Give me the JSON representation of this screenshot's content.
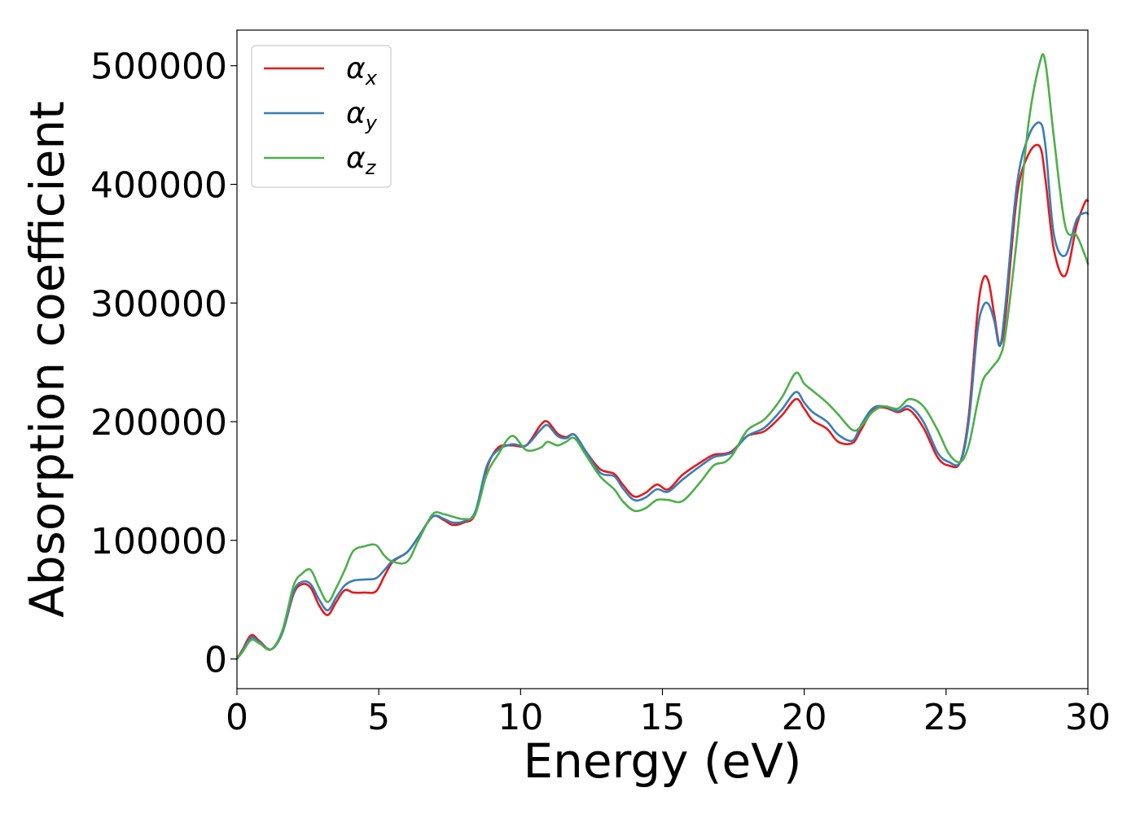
{
  "chart_data": {
    "type": "line",
    "xlabel": "Energy (eV)",
    "ylabel": "Absorption coefficient",
    "xlim": [
      0,
      30
    ],
    "ylim": [
      -25000,
      530000
    ],
    "xticks": [
      0,
      5,
      10,
      15,
      20,
      25,
      30
    ],
    "yticks": [
      0,
      100000,
      200000,
      300000,
      400000,
      500000
    ],
    "xtick_labels": [
      "0",
      "5",
      "10",
      "15",
      "20",
      "25",
      "30"
    ],
    "ytick_labels": [
      "0",
      "100000",
      "200000",
      "300000",
      "400000",
      "500000"
    ],
    "grid": false,
    "legend_position": "upper-left",
    "series": [
      {
        "name": "α",
        "subscript": "x",
        "color": "#e41a1c",
        "x": [
          0,
          0.2,
          0.5,
          0.8,
          1.2,
          1.6,
          2.0,
          2.3,
          2.6,
          2.9,
          3.2,
          3.5,
          3.8,
          4.1,
          4.5,
          4.9,
          5.2,
          5.5,
          6.0,
          6.4,
          6.9,
          7.3,
          7.6,
          8.0,
          8.4,
          8.8,
          9.2,
          9.7,
          10.2,
          10.7,
          10.95,
          11.3,
          11.6,
          11.9,
          12.3,
          12.8,
          13.3,
          13.6,
          14.0,
          14.4,
          14.8,
          15.2,
          15.7,
          16.3,
          16.8,
          17.2,
          17.5,
          18.0,
          18.6,
          19.2,
          19.7,
          20.0,
          20.3,
          20.8,
          21.2,
          21.7,
          22.0,
          22.4,
          22.8,
          23.3,
          23.7,
          24.2,
          24.7,
          25.1,
          25.5,
          25.8,
          26.1,
          26.3,
          26.5,
          26.7,
          26.9,
          27.1,
          27.5,
          27.9,
          28.3,
          28.5,
          28.8,
          29.2,
          29.6,
          29.9,
          30.0
        ],
        "values": [
          0,
          8000,
          20000,
          15000,
          8000,
          22000,
          55000,
          63000,
          60000,
          45000,
          37000,
          48000,
          58000,
          56000,
          56000,
          57000,
          70000,
          82000,
          90000,
          103000,
          120000,
          117000,
          113000,
          115000,
          122000,
          160000,
          178000,
          180000,
          180000,
          197000,
          200000,
          190000,
          187000,
          189000,
          175000,
          160000,
          156000,
          147000,
          137000,
          140000,
          147000,
          143000,
          155000,
          165000,
          172000,
          173000,
          176000,
          188000,
          192000,
          205000,
          219000,
          211000,
          201000,
          194000,
          183000,
          182000,
          193000,
          209000,
          212000,
          208000,
          210000,
          195000,
          170000,
          163000,
          166000,
          205000,
          290000,
          320000,
          318000,
          290000,
          265000,
          290000,
          390000,
          425000,
          432000,
          405000,
          345000,
          323000,
          365000,
          385000,
          386000
        ]
      },
      {
        "name": "α",
        "subscript": "y",
        "color": "#377eb8",
        "x": [
          0,
          0.2,
          0.5,
          0.8,
          1.2,
          1.6,
          2.0,
          2.3,
          2.6,
          2.9,
          3.2,
          3.5,
          3.8,
          4.1,
          4.5,
          4.9,
          5.2,
          5.5,
          6.0,
          6.4,
          6.9,
          7.3,
          7.6,
          8.0,
          8.4,
          8.8,
          9.2,
          9.7,
          10.2,
          10.7,
          10.95,
          11.3,
          11.6,
          11.9,
          12.3,
          12.8,
          13.3,
          13.6,
          14.0,
          14.4,
          14.8,
          15.2,
          15.7,
          16.3,
          16.8,
          17.2,
          17.5,
          18.0,
          18.6,
          19.2,
          19.7,
          20.0,
          20.3,
          20.8,
          21.2,
          21.7,
          22.0,
          22.4,
          22.8,
          23.3,
          23.7,
          24.2,
          24.7,
          25.1,
          25.5,
          25.8,
          26.1,
          26.3,
          26.5,
          26.7,
          26.9,
          27.1,
          27.5,
          27.9,
          28.3,
          28.5,
          28.8,
          29.2,
          29.6,
          29.9,
          30.0
        ],
        "values": [
          0,
          7000,
          18000,
          14000,
          8000,
          22000,
          57000,
          65000,
          63000,
          50000,
          41000,
          52000,
          62000,
          66000,
          67000,
          68000,
          75000,
          83000,
          90000,
          103000,
          120000,
          118000,
          115000,
          116000,
          124000,
          162000,
          176000,
          181000,
          180000,
          193000,
          197000,
          188000,
          186000,
          189000,
          175000,
          157000,
          154000,
          144000,
          134000,
          136000,
          143000,
          141000,
          151000,
          162000,
          170000,
          172000,
          175000,
          188000,
          195000,
          210000,
          225000,
          216000,
          208000,
          200000,
          189000,
          184000,
          197000,
          211000,
          213000,
          209000,
          213000,
          200000,
          174000,
          166000,
          166000,
          200000,
          275000,
          297000,
          299000,
          285000,
          264000,
          300000,
          400000,
          440000,
          452000,
          433000,
          358000,
          340000,
          370000,
          376000,
          375000
        ]
      },
      {
        "name": "α",
        "subscript": "z",
        "color": "#4daf4a",
        "x": [
          0,
          0.2,
          0.5,
          0.8,
          1.2,
          1.6,
          2.0,
          2.3,
          2.6,
          2.9,
          3.2,
          3.5,
          3.8,
          4.1,
          4.5,
          4.9,
          5.2,
          5.5,
          6.0,
          6.4,
          6.9,
          7.3,
          7.6,
          8.0,
          8.4,
          8.8,
          9.2,
          9.7,
          10.2,
          10.7,
          10.95,
          11.3,
          11.6,
          11.9,
          12.3,
          12.8,
          13.3,
          13.6,
          14.0,
          14.4,
          14.8,
          15.2,
          15.7,
          16.3,
          16.8,
          17.2,
          17.5,
          18.0,
          18.6,
          19.2,
          19.7,
          20.0,
          20.3,
          20.8,
          21.2,
          21.7,
          22.0,
          22.4,
          22.8,
          23.3,
          23.7,
          24.2,
          24.7,
          25.1,
          25.5,
          25.8,
          26.1,
          26.3,
          26.5,
          26.7,
          26.9,
          27.1,
          27.5,
          27.9,
          28.3,
          28.5,
          28.8,
          29.2,
          29.6,
          29.9,
          30.0
        ],
        "values": [
          0,
          6000,
          16000,
          13000,
          8000,
          24000,
          62000,
          72000,
          75000,
          60000,
          48000,
          60000,
          75000,
          91000,
          95000,
          96000,
          87000,
          82000,
          82000,
          100000,
          122000,
          122000,
          120000,
          118000,
          122000,
          155000,
          172000,
          188000,
          176000,
          178000,
          183000,
          180000,
          183000,
          186000,
          172000,
          154000,
          143000,
          133000,
          125000,
          127000,
          134000,
          134000,
          133000,
          148000,
          163000,
          166000,
          173000,
          193000,
          202000,
          220000,
          241000,
          232000,
          226000,
          216000,
          206000,
          193000,
          196000,
          208000,
          213000,
          211000,
          219000,
          213000,
          193000,
          173000,
          166000,
          180000,
          215000,
          235000,
          242000,
          248000,
          255000,
          275000,
          355000,
          450000,
          502000,
          503000,
          440000,
          365000,
          357000,
          340000,
          333000
        ]
      }
    ]
  }
}
